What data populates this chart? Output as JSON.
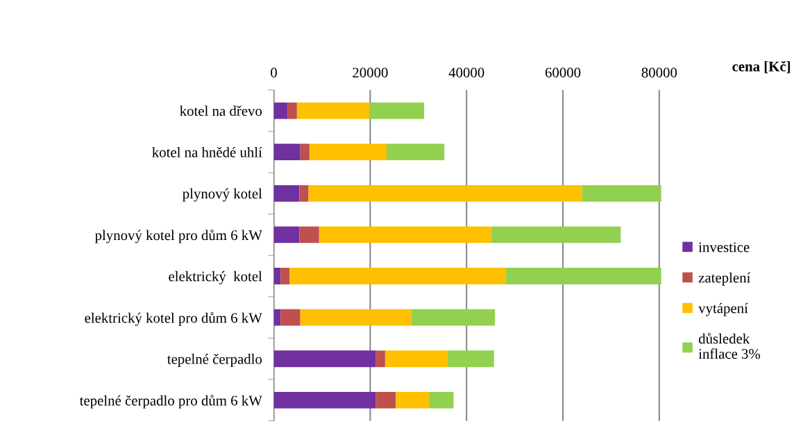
{
  "chart_data": {
    "type": "bar",
    "orientation": "horizontal",
    "stacked": true,
    "xlabel": "cena [Kč]",
    "categories": [
      "kotel na dřevo",
      "kotel na hnědé uhlí",
      "plynový kotel",
      "plynový kotel pro dům 6 kW",
      "elektrický  kotel",
      "elektrický kotel pro dům 6 kW",
      "tepelné čerpadlo",
      "tepelné čerpadlo pro dům 6 kW"
    ],
    "series": [
      {
        "name": "investice",
        "color": "#7030a0",
        "values": [
          2900,
          5500,
          5300,
          5300,
          1400,
          1400,
          21200,
          21200
        ]
      },
      {
        "name": "zateplení",
        "color": "#c0504d",
        "values": [
          1900,
          1900,
          1900,
          4100,
          1900,
          4100,
          1900,
          4100
        ]
      },
      {
        "name": "vytápení",
        "color": "#ffc000",
        "values": [
          15100,
          16000,
          56800,
          35700,
          44900,
          23000,
          12900,
          6900
        ]
      },
      {
        "name": "důsledek inflace 3%",
        "color": "#92d050",
        "values": [
          11300,
          12000,
          16400,
          26900,
          32200,
          17400,
          9700,
          5100
        ]
      }
    ],
    "xlim": [
      0,
      80500
    ],
    "xticks": [
      0,
      20000,
      40000,
      60000,
      80000
    ],
    "grid": "x",
    "legend": "right"
  }
}
